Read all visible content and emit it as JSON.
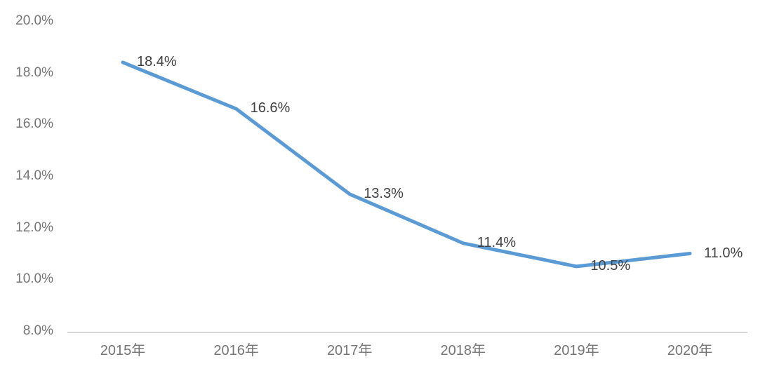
{
  "chart_data": {
    "type": "line",
    "title": "",
    "categories": [
      "2015年",
      "2016年",
      "2017年",
      "2018年",
      "2019年",
      "2020年"
    ],
    "series": [
      {
        "name": "",
        "values": [
          18.4,
          16.6,
          13.3,
          11.4,
          10.5,
          11.0
        ],
        "color": "#5b9bd5"
      }
    ],
    "data_labels": [
      "18.4%",
      "16.6%",
      "13.3%",
      "11.4%",
      "10.5%",
      "11.0%"
    ],
    "y_axis": {
      "tick_labels": [
        "20.0%",
        "18.0%",
        "16.0%",
        "14.0%",
        "12.0%",
        "10.0%",
        "8.0%"
      ],
      "tick_values": [
        20,
        18,
        16,
        14,
        12,
        10,
        8
      ],
      "ylim": [
        8,
        20
      ]
    },
    "grid": false,
    "legend": "none",
    "marker": "none",
    "axis_line_color": "#d9d9d9",
    "tick_label_color": "#757575",
    "data_label_color": "#404040"
  }
}
